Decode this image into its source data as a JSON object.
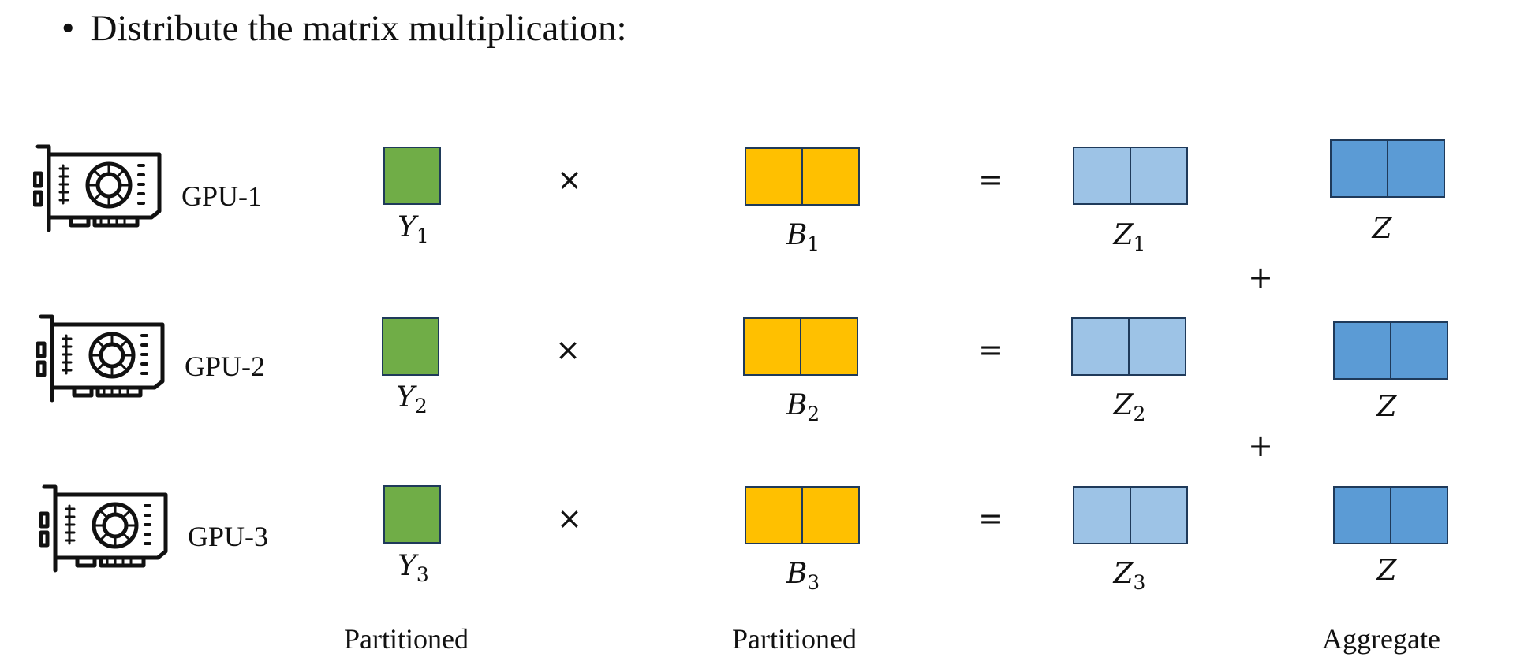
{
  "header": {
    "bullet": "•",
    "text": "Distribute the matrix multiplication:"
  },
  "rows": [
    {
      "gpu_label": "GPU-1",
      "times": "×",
      "equals": "=",
      "Y": {
        "base": "Y",
        "sub": "1"
      },
      "B": {
        "base": "B",
        "sub": "1"
      },
      "Z": {
        "base": "Z",
        "sub": "1"
      },
      "agg": "Z"
    },
    {
      "gpu_label": "GPU-2",
      "times": "×",
      "equals": "=",
      "Y": {
        "base": "Y",
        "sub": "2"
      },
      "B": {
        "base": "B",
        "sub": "2"
      },
      "Z": {
        "base": "Z",
        "sub": "2"
      },
      "agg": "Z"
    },
    {
      "gpu_label": "GPU-3",
      "times": "×",
      "equals": "=",
      "Y": {
        "base": "Y",
        "sub": "3"
      },
      "B": {
        "base": "B",
        "sub": "3"
      },
      "Z": {
        "base": "Z",
        "sub": "3"
      },
      "agg": "Z"
    }
  ],
  "plus": [
    "+",
    "+"
  ],
  "captions": {
    "y_col": "Partitioned",
    "b_col": "Partitioned",
    "agg_col": "Aggregate"
  },
  "colors": {
    "green": "#70ad47",
    "yellow": "#ffc000",
    "light_blue": "#9dc3e6",
    "blue": "#5b9bd5",
    "outline": "#1f3a5a"
  },
  "icons": [
    "gpu-card-icon",
    "gpu-card-icon",
    "gpu-card-icon"
  ]
}
